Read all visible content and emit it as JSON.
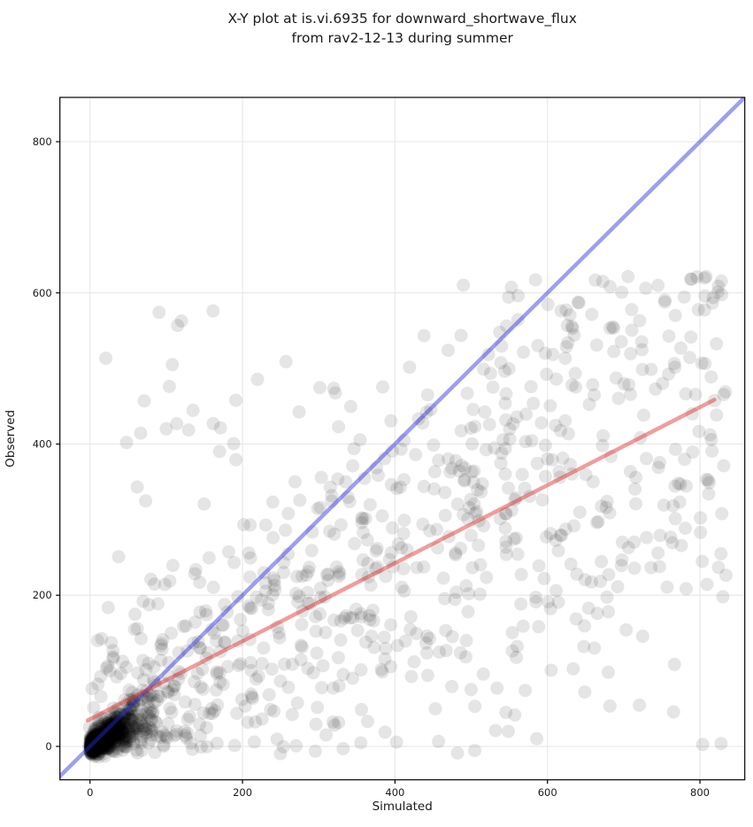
{
  "title": {
    "line1": "X-Y plot at is.vi.6935 for downward_shortwave_flux",
    "line2": "from rav2-12-13 during summer"
  },
  "chart_data": {
    "type": "scatter",
    "title": "X-Y plot at is.vi.6935 for downward_shortwave_flux from rav2-12-13 during summer",
    "xlabel": "Simulated",
    "ylabel": "Observed",
    "xlim": [
      -39.5,
      858.8
    ],
    "ylim": [
      -44.2,
      858.6
    ],
    "xticks": [
      0,
      200,
      400,
      600,
      800
    ],
    "yticks": [
      0,
      200,
      400,
      600,
      800
    ],
    "grid": true,
    "legend": false,
    "colors": {
      "background": "#ffffff",
      "grid": "#e9e9e9",
      "spine": "#000000",
      "tick_text": "#1a1a1a",
      "one_to_one_line": "rgba(40,40,225,0.45)",
      "regression_line": "rgba(225,35,35,0.45)"
    },
    "marker": {
      "shape": "circle",
      "color": "#000000",
      "opacity": 0.1,
      "radius": 7.5
    },
    "lines": [
      {
        "name": "one-to-one-line",
        "slope": 1,
        "intercept": 0,
        "x_start": -45,
        "x_end": 865,
        "color": "rgba(40,40,225,0.45)",
        "width": 4.5
      },
      {
        "name": "regression-line",
        "slope": 0.516,
        "intercept": 36,
        "x_start": -3,
        "x_end": 819,
        "color": "rgba(225,35,35,0.45)",
        "width": 4.5
      }
    ],
    "scatter_cloud": {
      "description": "approx 1500 semi-transparent points: dense blob at origin, wide heteroscedastic band around y=30+0.52x up to x~830, y capped ~620, sparse high outliers at low x",
      "seed": 7,
      "clusters": [
        {
          "kind": "blob",
          "n": 720,
          "x_exp_mean": 26,
          "x_max": 150,
          "slope_min": 0.15,
          "slope_max": 1.05,
          "y_noise": 7,
          "y_min": -14
        },
        {
          "kind": "band",
          "n": 780,
          "x_min": -5,
          "x_max": 835,
          "intercept": 30,
          "slope": 0.52,
          "sd_base": 65,
          "sd_slope": 0.15,
          "y_min": -10,
          "y_max": 622
        },
        {
          "kind": "uniform",
          "n": 22,
          "x_min": 5,
          "x_max": 270,
          "y_min": 330,
          "y_max": 585
        }
      ]
    }
  }
}
